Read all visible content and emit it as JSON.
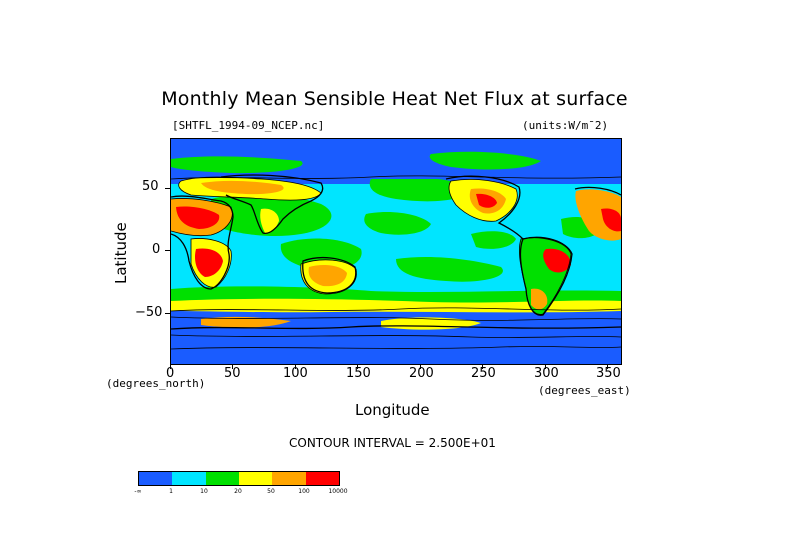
{
  "title": "Monthly Mean Sensible Heat Net Flux at surface",
  "filename": "[SHTFL_1994-09_NCEP.nc]",
  "units": "(units:W/m^2)",
  "units_display": "(units:W/m¯2)",
  "x_axis_label": "Longitude",
  "y_axis_label": "Latitude",
  "x_units_note": "(degrees_east)",
  "y_units_note": "(degrees_north)",
  "contour_interval": "CONTOUR INTERVAL = 2.500E+01",
  "x_ticks": [
    "0",
    "50",
    "100",
    "150",
    "200",
    "250",
    "300",
    "350"
  ],
  "y_ticks": [
    "50",
    "0",
    "−50"
  ],
  "colorbar": {
    "colors": [
      "#1a5cff",
      "#00e5ff",
      "#00e000",
      "#ffff00",
      "#ffa500",
      "#ff0000"
    ],
    "labels": [
      "-∞",
      "1",
      "10",
      "20",
      "50",
      "100",
      "10000"
    ]
  },
  "chart_data": {
    "type": "heatmap",
    "title": "Monthly Mean Sensible Heat Net Flux at surface",
    "xlabel": "Longitude",
    "ylabel": "Latitude",
    "xlim": [
      0,
      360
    ],
    "ylim": [
      -90,
      90
    ],
    "x_ticks": [
      0,
      50,
      100,
      150,
      200,
      250,
      300,
      350
    ],
    "y_ticks": [
      50,
      0,
      -50
    ],
    "levels": [
      "-∞",
      1,
      10,
      20,
      50,
      100,
      10000
    ],
    "level_colors": [
      "#1a5cff",
      "#00e5ff",
      "#00e000",
      "#ffff00",
      "#ffa500",
      "#ff0000"
    ],
    "units": "W/m^2"
  }
}
